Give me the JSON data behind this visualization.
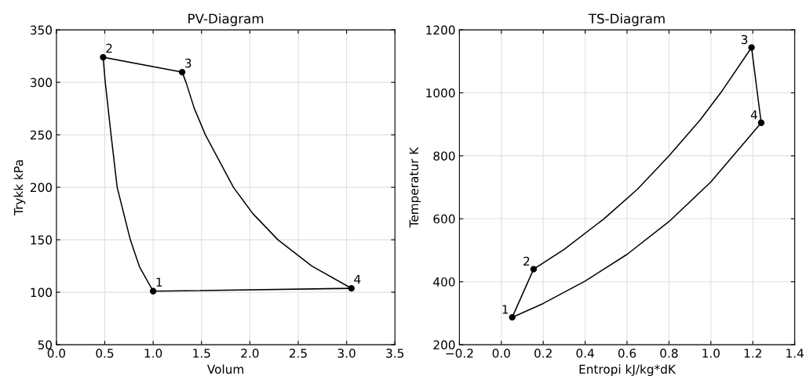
{
  "chart_data": [
    {
      "type": "line",
      "title": "PV-Diagram",
      "xlabel": "Volum",
      "ylabel": "Trykk kPa",
      "xlim": [
        0,
        3.5
      ],
      "ylim": [
        50,
        350
      ],
      "xticks": [
        {
          "value": 0,
          "label": "0.0"
        },
        0.5,
        {
          "value": 1,
          "label": "1.0"
        },
        1.5,
        {
          "value": 2,
          "label": "2.0"
        },
        2.5,
        {
          "value": 3,
          "label": "3.0"
        },
        3.5
      ],
      "yticks": [
        50,
        100,
        150,
        200,
        250,
        300,
        350
      ],
      "grid": true,
      "series": [
        {
          "color": "#000000",
          "marker": "none",
          "x": [
            0.483,
            0.505,
            0.565,
            0.628,
            0.764,
            0.86,
            1.0
          ],
          "values": [
            323.9,
            300,
            250,
            200,
            150,
            124,
            101.0
          ]
        },
        {
          "color": "#000000",
          "marker": "none",
          "x": [
            0.483,
            1.3
          ],
          "values": [
            323.9,
            309.7
          ]
        },
        {
          "color": "#000000",
          "marker": "none",
          "x": [
            1.3,
            1.34,
            1.426,
            1.54,
            1.83,
            2.03,
            2.29,
            2.64,
            3.05
          ],
          "values": [
            309.7,
            300,
            275,
            250,
            200,
            175,
            150,
            125,
            103.7
          ]
        },
        {
          "color": "#000000",
          "marker": "none",
          "x": [
            1.0,
            3.05
          ],
          "values": [
            101.0,
            103.7
          ]
        },
        {
          "type": "scatter",
          "color": "#000000",
          "marker": "circle",
          "x": [
            1.0,
            0.483,
            1.3,
            3.05
          ],
          "values": [
            101.0,
            323.9,
            309.7,
            103.7
          ]
        }
      ],
      "annotations": [
        {
          "text": "1",
          "x": 1.0,
          "y": 101.0
        },
        {
          "text": "2",
          "x": 0.483,
          "y": 323.9
        },
        {
          "text": "3",
          "x": 1.3,
          "y": 309.7
        },
        {
          "text": "4",
          "x": 3.05,
          "y": 103.7
        }
      ]
    },
    {
      "type": "line",
      "title": "TS-Diagram",
      "xlabel": "Entropi kJ/kg*dK",
      "ylabel": "Temperatur K",
      "xlim": [
        -0.2,
        1.4
      ],
      "ylim": [
        200,
        1200
      ],
      "xticks": [
        {
          "value": -0.2,
          "label": "−0.2"
        },
        {
          "value": 0,
          "label": "0.0"
        },
        0.2,
        0.4,
        0.6,
        0.8,
        {
          "value": 1,
          "label": "1.0"
        },
        1.2,
        1.4
      ],
      "yticks": [
        200,
        400,
        600,
        800,
        1000,
        1200
      ],
      "grid": true,
      "series": [
        {
          "color": "#000000",
          "marker": "none",
          "x": [
            0.052,
            0.154
          ],
          "values": [
            287,
            440
          ]
        },
        {
          "color": "#000000",
          "marker": "none",
          "x": [
            0.154,
            0.3,
            0.49,
            0.65,
            0.8,
            0.95,
            1.05,
            1.194
          ],
          "values": [
            440,
            503,
            600,
            694,
            800,
            915,
            1003,
            1144
          ]
        },
        {
          "color": "#000000",
          "marker": "none",
          "x": [
            1.194,
            1.24
          ],
          "values": [
            1144,
            905
          ]
        },
        {
          "color": "#000000",
          "marker": "none",
          "x": [
            0.052,
            0.2,
            0.4,
            0.6,
            0.8,
            1.0,
            1.24
          ],
          "values": [
            287,
            331,
            402,
            487,
            591,
            717,
            905
          ]
        },
        {
          "type": "scatter",
          "color": "#000000",
          "marker": "circle",
          "x": [
            0.052,
            0.154,
            1.194,
            1.24
          ],
          "values": [
            287,
            440,
            1144,
            905
          ]
        }
      ],
      "annotations": [
        {
          "text": "1",
          "x": 0.052,
          "y": 287
        },
        {
          "text": "2",
          "x": 0.154,
          "y": 440
        },
        {
          "text": "3",
          "x": 1.194,
          "y": 1144
        },
        {
          "text": "4",
          "x": 1.24,
          "y": 905
        }
      ]
    }
  ]
}
